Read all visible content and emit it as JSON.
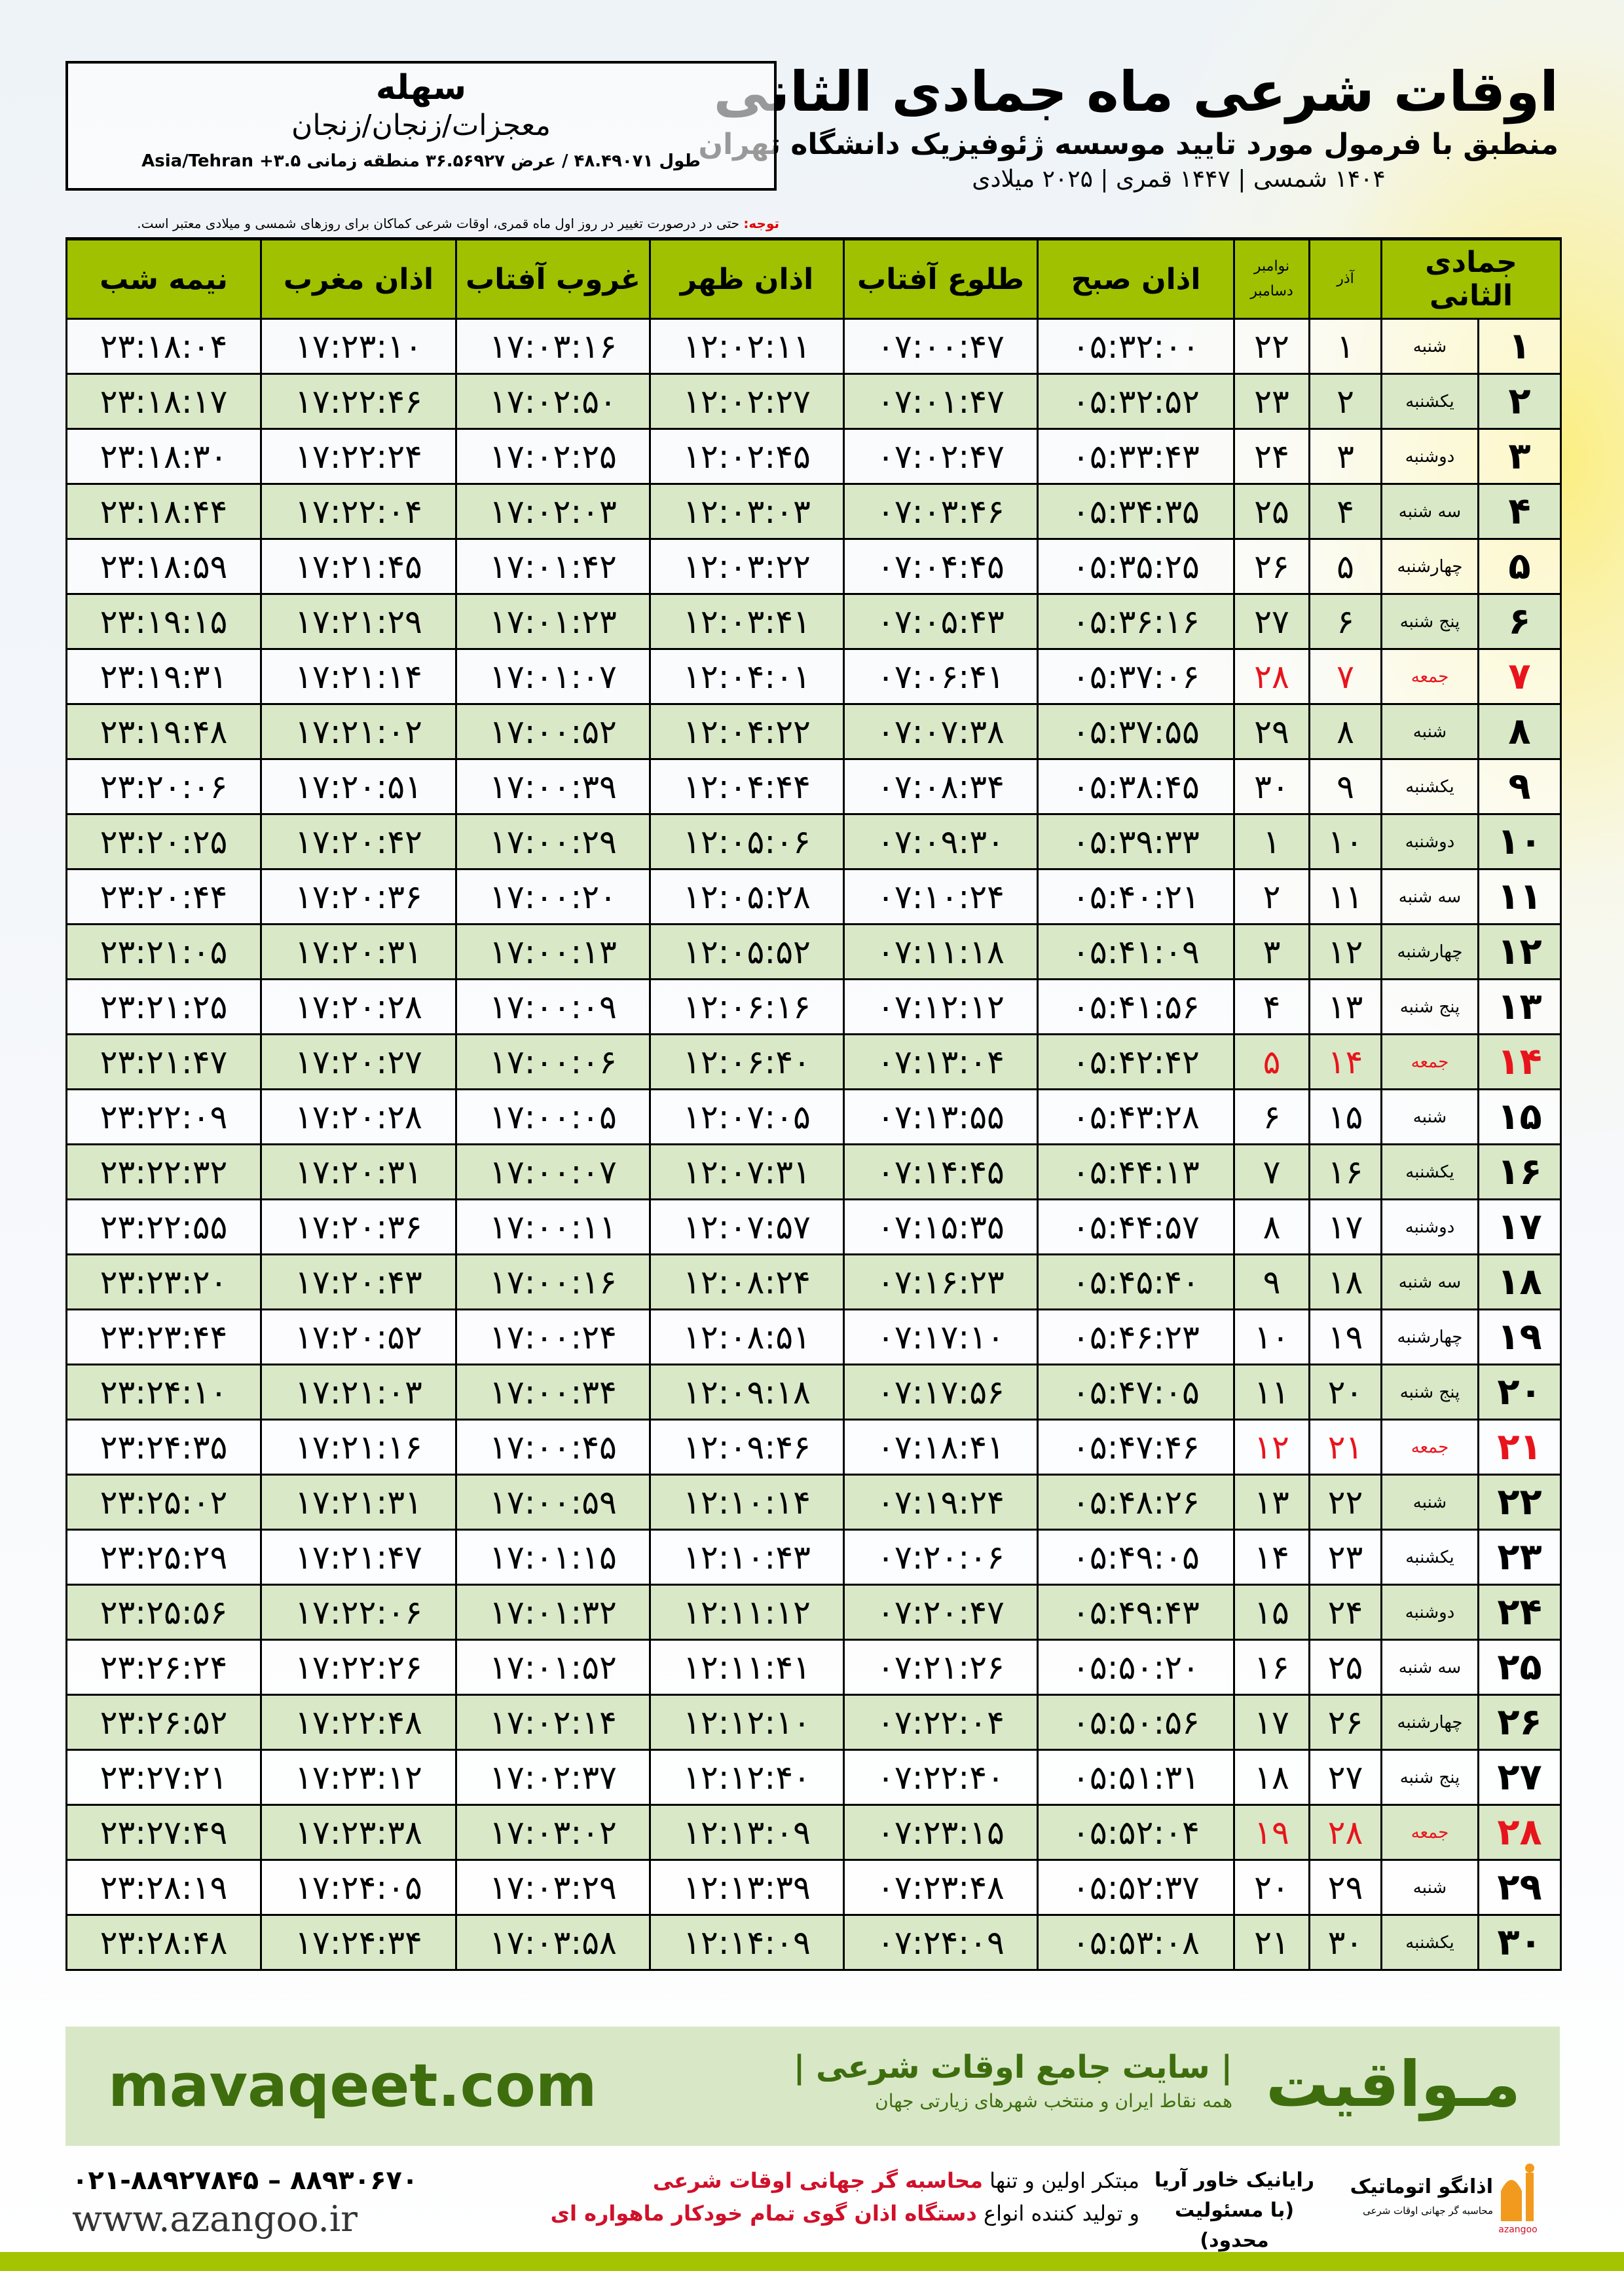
{
  "header": {
    "title": "اوقات شرعی ماه جمادی الثانی",
    "subtitle": "منطبق با فرمول مورد تایید موسسه ژئوفیزیک دانشگاه تهران",
    "years": "۱۴۰۴ شمسی | ۱۴۴۷ قمری | ۲۰۲۵ میلادی"
  },
  "location": {
    "city": "سهله",
    "path": "معجزات/زنجان/زنجان",
    "coords": "طول ۴۸.۴۹۰۷۱ / عرض ۳۶.۵۶۹۲۷ منطقه زمانی ۳.۵+ Asia/Tehran"
  },
  "note": {
    "label": "توجه:",
    "text": " حتی در درصورت تغییر در روز اول ماه قمری، اوقات شرعی کماکان برای روزهای شمسی و میلادی معتبر است."
  },
  "table": {
    "headers": {
      "hijri": "جمادی الثانی",
      "azar": "آذر",
      "nov": "نوامبر",
      "dec": "دسامبر",
      "sobh": "اذان صبح",
      "tolu": "طلوع آفتاب",
      "zohr": "اذان ظهر",
      "ghorub": "غروب آفتاب",
      "maghreb": "اذان مغرب",
      "nimeh": "نیمه شب"
    },
    "holiday_color": "#e8141c",
    "header_color": "#a0c100",
    "alt_row_color": "#d9e8c6",
    "rows": [
      [
        "۱",
        "شنبه",
        "۱",
        "۲۲",
        "۰۵:۳۲:۰۰",
        "۰۷:۰۰:۴۷",
        "۱۲:۰۲:۱۱",
        "۱۷:۰۳:۱۶",
        "۱۷:۲۳:۱۰",
        "۲۳:۱۸:۰۴"
      ],
      [
        "۲",
        "یکشنبه",
        "۲",
        "۲۳",
        "۰۵:۳۲:۵۲",
        "۰۷:۰۱:۴۷",
        "۱۲:۰۲:۲۷",
        "۱۷:۰۲:۵۰",
        "۱۷:۲۲:۴۶",
        "۲۳:۱۸:۱۷"
      ],
      [
        "۳",
        "دوشنبه",
        "۳",
        "۲۴",
        "۰۵:۳۳:۴۳",
        "۰۷:۰۲:۴۷",
        "۱۲:۰۲:۴۵",
        "۱۷:۰۲:۲۵",
        "۱۷:۲۲:۲۴",
        "۲۳:۱۸:۳۰"
      ],
      [
        "۴",
        "سه شنبه",
        "۴",
        "۲۵",
        "۰۵:۳۴:۳۵",
        "۰۷:۰۳:۴۶",
        "۱۲:۰۳:۰۳",
        "۱۷:۰۲:۰۳",
        "۱۷:۲۲:۰۴",
        "۲۳:۱۸:۴۴"
      ],
      [
        "۵",
        "چهارشنبه",
        "۵",
        "۲۶",
        "۰۵:۳۵:۲۵",
        "۰۷:۰۴:۴۵",
        "۱۲:۰۳:۲۲",
        "۱۷:۰۱:۴۲",
        "۱۷:۲۱:۴۵",
        "۲۳:۱۸:۵۹"
      ],
      [
        "۶",
        "پنج شنبه",
        "۶",
        "۲۷",
        "۰۵:۳۶:۱۶",
        "۰۷:۰۵:۴۳",
        "۱۲:۰۳:۴۱",
        "۱۷:۰۱:۲۳",
        "۱۷:۲۱:۲۹",
        "۲۳:۱۹:۱۵"
      ],
      [
        "۷",
        "جمعه",
        "۷",
        "۲۸",
        "۰۵:۳۷:۰۶",
        "۰۷:۰۶:۴۱",
        "۱۲:۰۴:۰۱",
        "۱۷:۰۱:۰۷",
        "۱۷:۲۱:۱۴",
        "۲۳:۱۹:۳۱"
      ],
      [
        "۸",
        "شنبه",
        "۸",
        "۲۹",
        "۰۵:۳۷:۵۵",
        "۰۷:۰۷:۳۸",
        "۱۲:۰۴:۲۲",
        "۱۷:۰۰:۵۲",
        "۱۷:۲۱:۰۲",
        "۲۳:۱۹:۴۸"
      ],
      [
        "۹",
        "یکشنبه",
        "۹",
        "۳۰",
        "۰۵:۳۸:۴۵",
        "۰۷:۰۸:۳۴",
        "۱۲:۰۴:۴۴",
        "۱۷:۰۰:۳۹",
        "۱۷:۲۰:۵۱",
        "۲۳:۲۰:۰۶"
      ],
      [
        "۱۰",
        "دوشنبه",
        "۱۰",
        "۱",
        "۰۵:۳۹:۳۳",
        "۰۷:۰۹:۳۰",
        "۱۲:۰۵:۰۶",
        "۱۷:۰۰:۲۹",
        "۱۷:۲۰:۴۲",
        "۲۳:۲۰:۲۵"
      ],
      [
        "۱۱",
        "سه شنبه",
        "۱۱",
        "۲",
        "۰۵:۴۰:۲۱",
        "۰۷:۱۰:۲۴",
        "۱۲:۰۵:۲۸",
        "۱۷:۰۰:۲۰",
        "۱۷:۲۰:۳۶",
        "۲۳:۲۰:۴۴"
      ],
      [
        "۱۲",
        "چهارشنبه",
        "۱۲",
        "۳",
        "۰۵:۴۱:۰۹",
        "۰۷:۱۱:۱۸",
        "۱۲:۰۵:۵۲",
        "۱۷:۰۰:۱۳",
        "۱۷:۲۰:۳۱",
        "۲۳:۲۱:۰۵"
      ],
      [
        "۱۳",
        "پنج شنبه",
        "۱۳",
        "۴",
        "۰۵:۴۱:۵۶",
        "۰۷:۱۲:۱۲",
        "۱۲:۰۶:۱۶",
        "۱۷:۰۰:۰۹",
        "۱۷:۲۰:۲۸",
        "۲۳:۲۱:۲۵"
      ],
      [
        "۱۴",
        "جمعه",
        "۱۴",
        "۵",
        "۰۵:۴۲:۴۲",
        "۰۷:۱۳:۰۴",
        "۱۲:۰۶:۴۰",
        "۱۷:۰۰:۰۶",
        "۱۷:۲۰:۲۷",
        "۲۳:۲۱:۴۷"
      ],
      [
        "۱۵",
        "شنبه",
        "۱۵",
        "۶",
        "۰۵:۴۳:۲۸",
        "۰۷:۱۳:۵۵",
        "۱۲:۰۷:۰۵",
        "۱۷:۰۰:۰۵",
        "۱۷:۲۰:۲۸",
        "۲۳:۲۲:۰۹"
      ],
      [
        "۱۶",
        "یکشنبه",
        "۱۶",
        "۷",
        "۰۵:۴۴:۱۳",
        "۰۷:۱۴:۴۵",
        "۱۲:۰۷:۳۱",
        "۱۷:۰۰:۰۷",
        "۱۷:۲۰:۳۱",
        "۲۳:۲۲:۳۲"
      ],
      [
        "۱۷",
        "دوشنبه",
        "۱۷",
        "۸",
        "۰۵:۴۴:۵۷",
        "۰۷:۱۵:۳۵",
        "۱۲:۰۷:۵۷",
        "۱۷:۰۰:۱۱",
        "۱۷:۲۰:۳۶",
        "۲۳:۲۲:۵۵"
      ],
      [
        "۱۸",
        "سه شنبه",
        "۱۸",
        "۹",
        "۰۵:۴۵:۴۰",
        "۰۷:۱۶:۲۳",
        "۱۲:۰۸:۲۴",
        "۱۷:۰۰:۱۶",
        "۱۷:۲۰:۴۳",
        "۲۳:۲۳:۲۰"
      ],
      [
        "۱۹",
        "چهارشنبه",
        "۱۹",
        "۱۰",
        "۰۵:۴۶:۲۳",
        "۰۷:۱۷:۱۰",
        "۱۲:۰۸:۵۱",
        "۱۷:۰۰:۲۴",
        "۱۷:۲۰:۵۲",
        "۲۳:۲۳:۴۴"
      ],
      [
        "۲۰",
        "پنج شنبه",
        "۲۰",
        "۱۱",
        "۰۵:۴۷:۰۵",
        "۰۷:۱۷:۵۶",
        "۱۲:۰۹:۱۸",
        "۱۷:۰۰:۳۴",
        "۱۷:۲۱:۰۳",
        "۲۳:۲۴:۱۰"
      ],
      [
        "۲۱",
        "جمعه",
        "۲۱",
        "۱۲",
        "۰۵:۴۷:۴۶",
        "۰۷:۱۸:۴۱",
        "۱۲:۰۹:۴۶",
        "۱۷:۰۰:۴۵",
        "۱۷:۲۱:۱۶",
        "۲۳:۲۴:۳۵"
      ],
      [
        "۲۲",
        "شنبه",
        "۲۲",
        "۱۳",
        "۰۵:۴۸:۲۶",
        "۰۷:۱۹:۲۴",
        "۱۲:۱۰:۱۴",
        "۱۷:۰۰:۵۹",
        "۱۷:۲۱:۳۱",
        "۲۳:۲۵:۰۲"
      ],
      [
        "۲۳",
        "یکشنبه",
        "۲۳",
        "۱۴",
        "۰۵:۴۹:۰۵",
        "۰۷:۲۰:۰۶",
        "۱۲:۱۰:۴۳",
        "۱۷:۰۱:۱۵",
        "۱۷:۲۱:۴۷",
        "۲۳:۲۵:۲۹"
      ],
      [
        "۲۴",
        "دوشنبه",
        "۲۴",
        "۱۵",
        "۰۵:۴۹:۴۳",
        "۰۷:۲۰:۴۷",
        "۱۲:۱۱:۱۲",
        "۱۷:۰۱:۳۲",
        "۱۷:۲۲:۰۶",
        "۲۳:۲۵:۵۶"
      ],
      [
        "۲۵",
        "سه شنبه",
        "۲۵",
        "۱۶",
        "۰۵:۵۰:۲۰",
        "۰۷:۲۱:۲۶",
        "۱۲:۱۱:۴۱",
        "۱۷:۰۱:۵۲",
        "۱۷:۲۲:۲۶",
        "۲۳:۲۶:۲۴"
      ],
      [
        "۲۶",
        "چهارشنبه",
        "۲۶",
        "۱۷",
        "۰۵:۵۰:۵۶",
        "۰۷:۲۲:۰۴",
        "۱۲:۱۲:۱۰",
        "۱۷:۰۲:۱۴",
        "۱۷:۲۲:۴۸",
        "۲۳:۲۶:۵۲"
      ],
      [
        "۲۷",
        "پنج شنبه",
        "۲۷",
        "۱۸",
        "۰۵:۵۱:۳۱",
        "۰۷:۲۲:۴۰",
        "۱۲:۱۲:۴۰",
        "۱۷:۰۲:۳۷",
        "۱۷:۲۳:۱۲",
        "۲۳:۲۷:۲۱"
      ],
      [
        "۲۸",
        "جمعه",
        "۲۸",
        "۱۹",
        "۰۵:۵۲:۰۴",
        "۰۷:۲۳:۱۵",
        "۱۲:۱۳:۰۹",
        "۱۷:۰۳:۰۲",
        "۱۷:۲۳:۳۸",
        "۲۳:۲۷:۴۹"
      ],
      [
        "۲۹",
        "شنبه",
        "۲۹",
        "۲۰",
        "۰۵:۵۲:۳۷",
        "۰۷:۲۳:۴۸",
        "۱۲:۱۳:۳۹",
        "۱۷:۰۳:۲۹",
        "۱۷:۲۴:۰۵",
        "۲۳:۲۸:۱۹"
      ],
      [
        "۳۰",
        "یکشنبه",
        "۳۰",
        "۲۱",
        "۰۵:۵۳:۰۸",
        "۰۷:۲۴:۰۹",
        "۱۲:۱۴:۰۹",
        "۱۷:۰۳:۵۸",
        "۱۷:۲۴:۳۴",
        "۲۳:۲۸:۴۸"
      ]
    ],
    "holiday_rows": [
      7,
      14,
      21,
      28
    ]
  },
  "banner": {
    "brand": "مـواقیت",
    "slogan": "| سایت جامع اوقات شرعی |",
    "sub": "همه نقاط ایران و منتخب شهرهای زیارتی جهان",
    "site": "mavaqeet.com",
    "color": "#3e6d0e"
  },
  "footer": {
    "phone": "۰۲۱-۸۸۹۲۷۸۴۵ – ۸۸۹۳۰۶۷۰",
    "www": "www.azangoo.ir",
    "promo1_a": "مبتکر اولین و تنها ",
    "promo1_b": "محاسبه گر جهانی اوقات شرعی",
    "promo2_a": "و تولید کننده انواع ",
    "promo2_b": "دستگاه اذان گوی تمام خودکار ماهواره ای",
    "logo1": "اذانگو اتوماتیک محاسبه گر جهانی اوقات شرعی azangoo",
    "logo2": "رایانیک خاور آریا (با مسئولیت محدود)"
  }
}
